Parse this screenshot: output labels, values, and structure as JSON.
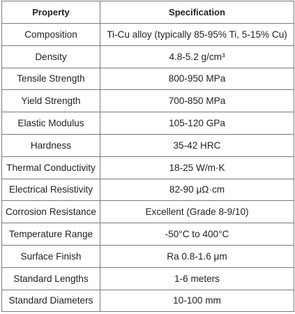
{
  "table": {
    "headers": {
      "property": "Property",
      "specification": "Specification"
    },
    "rows": [
      {
        "property": "Composition",
        "specification": "Ti-Cu alloy (typically 85-95% Ti, 5-15% Cu)"
      },
      {
        "property": "Density",
        "specification": "4.8-5.2 g/cm³"
      },
      {
        "property": "Tensile Strength",
        "specification": "800-950 MPa"
      },
      {
        "property": "Yield Strength",
        "specification": "700-850 MPa"
      },
      {
        "property": "Elastic Modulus",
        "specification": "105-120 GPa"
      },
      {
        "property": "Hardness",
        "specification": "35-42 HRC"
      },
      {
        "property": "Thermal Conductivity",
        "specification": "18-25 W/m·K"
      },
      {
        "property": "Electrical Resistivity",
        "specification": "82-90 μΩ·cm"
      },
      {
        "property": "Corrosion Resistance",
        "specification": "Excellent (Grade 8-9/10)"
      },
      {
        "property": "Temperature Range",
        "specification": "-50°C to 400°C"
      },
      {
        "property": "Surface Finish",
        "specification": "Ra 0.8-1.6 μm"
      },
      {
        "property": "Standard Lengths",
        "specification": "1-6 meters"
      },
      {
        "property": "Standard Diameters",
        "specification": "10-100 mm"
      }
    ]
  }
}
